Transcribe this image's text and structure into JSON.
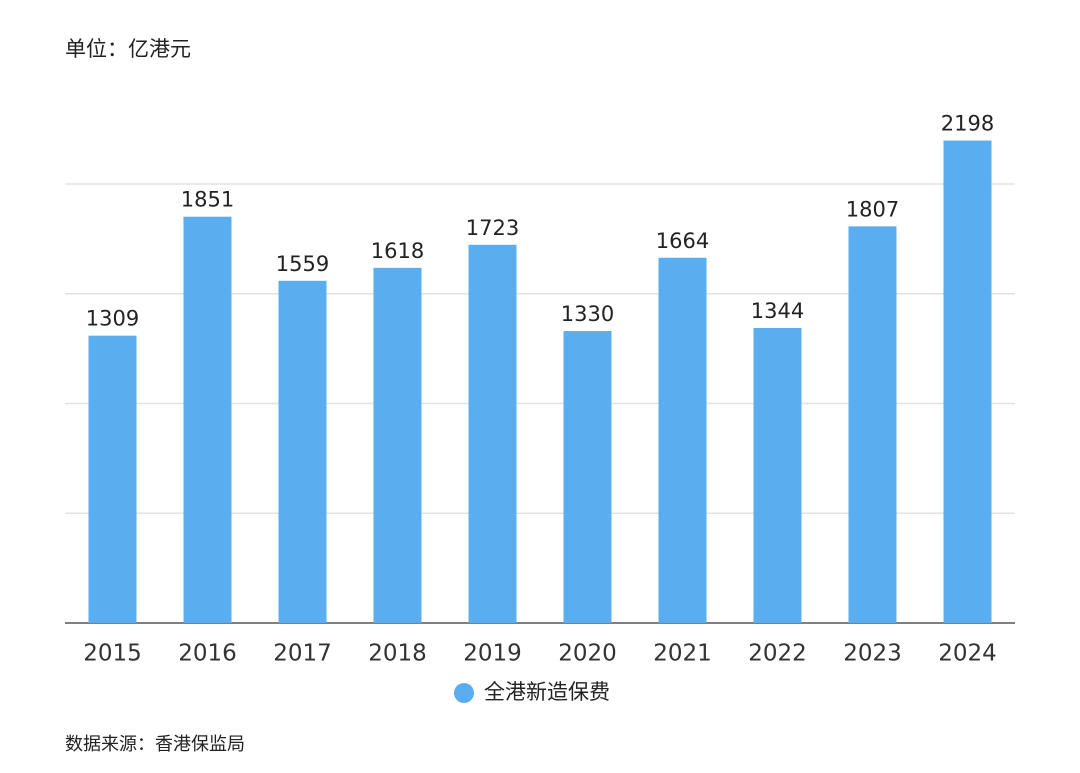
{
  "chart_data": {
    "type": "bar",
    "unit_label": "单位：亿港元",
    "source": "数据来源：香港保监局",
    "categories": [
      "2015",
      "2016",
      "2017",
      "2018",
      "2019",
      "2020",
      "2021",
      "2022",
      "2023",
      "2024"
    ],
    "series": [
      {
        "name": "全港新造保费",
        "color": "#5aadee",
        "values": [
          1309,
          1851,
          1559,
          1618,
          1723,
          1330,
          1664,
          1344,
          1807,
          2198
        ]
      }
    ],
    "ylim": [
      0,
      2500
    ],
    "yticks": [
      0,
      500,
      1000,
      1500,
      2000
    ],
    "grid": true,
    "legend": "bottom"
  }
}
